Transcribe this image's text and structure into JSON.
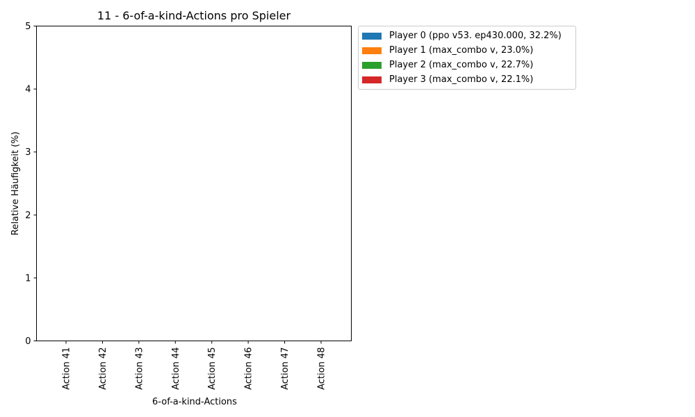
{
  "chart_data": {
    "type": "bar",
    "title": "11 - 6-of-a-kind-Actions pro Spieler",
    "xlabel": "6-of-a-kind-Actions",
    "ylabel": "Relative Häufigkeit (%)",
    "categories": [
      "Action 41",
      "Action 42",
      "Action 43",
      "Action 44",
      "Action 45",
      "Action 46",
      "Action 47",
      "Action 48"
    ],
    "yticks": [
      "0",
      "1",
      "2",
      "3",
      "4",
      "5"
    ],
    "ylim": [
      0,
      5
    ],
    "grid": false,
    "legend_position": "outside top-right",
    "series": [
      {
        "name": "Player 0 (ppo v53. ep430.000, 32.2%)",
        "color": "#1f77b4",
        "values": [
          0,
          0,
          0,
          0,
          0,
          0,
          0,
          0
        ]
      },
      {
        "name": "Player 1 (max_combo v, 23.0%)",
        "color": "#ff7f0e",
        "values": [
          0,
          0,
          0,
          0,
          0,
          0,
          0,
          0
        ]
      },
      {
        "name": "Player 2 (max_combo v, 22.7%)",
        "color": "#2ca02c",
        "values": [
          0,
          0,
          0,
          0,
          0,
          0,
          0,
          0
        ]
      },
      {
        "name": "Player 3 (max_combo v, 22.1%)",
        "color": "#d62728",
        "values": [
          0,
          0,
          0,
          0,
          0,
          0,
          0,
          0
        ]
      }
    ]
  }
}
